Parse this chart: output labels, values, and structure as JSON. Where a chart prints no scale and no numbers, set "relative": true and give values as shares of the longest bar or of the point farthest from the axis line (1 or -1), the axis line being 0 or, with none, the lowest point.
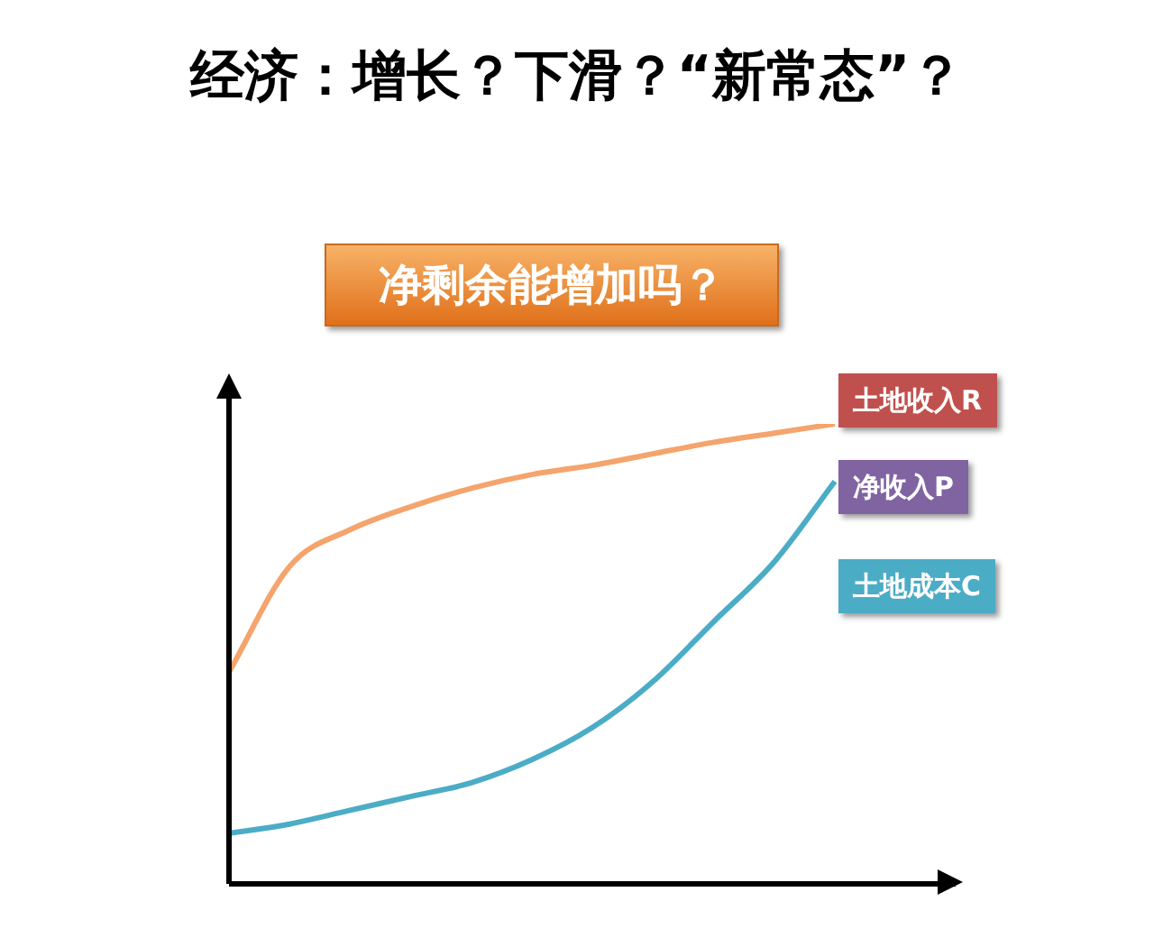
{
  "chart_data": {
    "type": "line",
    "title": "经济：增长？下滑？“新常态”？",
    "subtitle": "净剩余能增加吗？",
    "relative": true,
    "categories": [
      null,
      null,
      null,
      null,
      null,
      null,
      null,
      null,
      null,
      null,
      null
    ],
    "series": [
      {
        "name": "土地收入R",
        "color": "#f4a46c",
        "values": [
          0.46,
          0.69,
          0.77,
          0.82,
          0.86,
          0.89,
          0.91,
          0.935,
          0.96,
          0.98,
          1
        ]
      },
      {
        "name": "土地成本C",
        "color": "#4bacc6",
        "values": [
          0.11,
          0.13,
          0.16,
          0.19,
          0.22,
          0.27,
          0.34,
          0.44,
          0.57,
          0.7,
          0.875
        ]
      }
    ],
    "annotations": [
      "净收入P"
    ],
    "legend": "right",
    "marker": "none"
  }
}
